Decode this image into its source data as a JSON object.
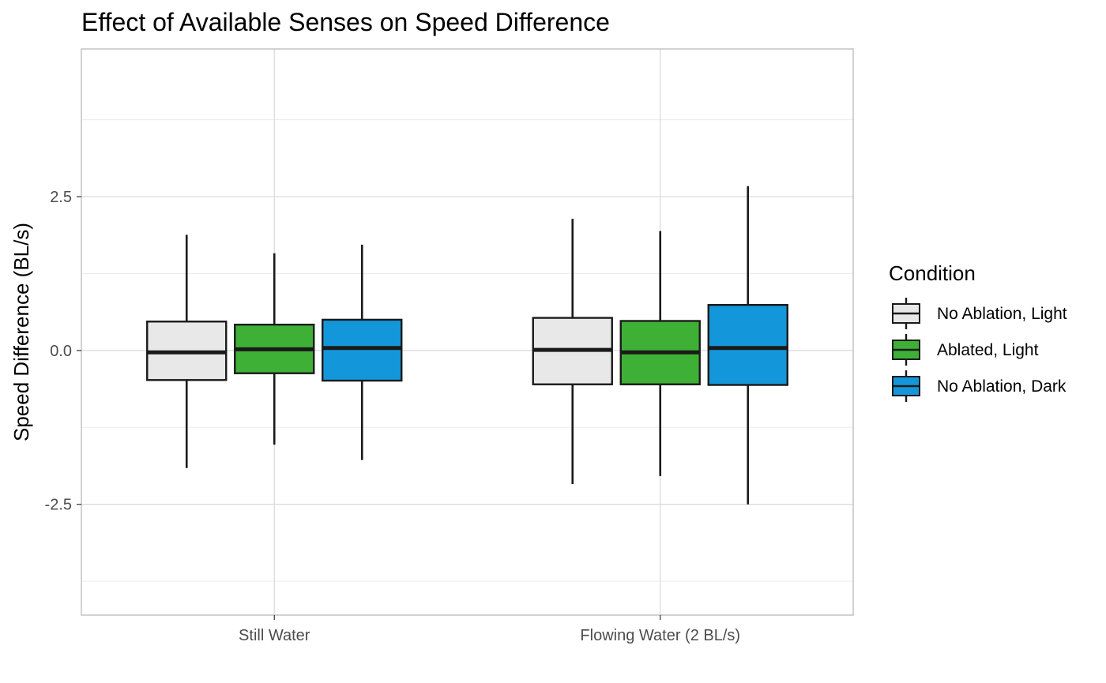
{
  "chart_data": {
    "type": "boxplot",
    "title": "Effect of Available Senses on Speed Difference",
    "ylabel": "Speed Difference (BL/s)",
    "xlabel": "",
    "categories": [
      "Still Water",
      "Flowing Water (2 BL/s)"
    ],
    "ylim": [
      -4.3,
      4.9
    ],
    "y_ticks": [
      -2.5,
      0.0,
      2.5
    ],
    "y_tick_labels": [
      "-2.5",
      "0.0",
      "2.5"
    ],
    "grid": true,
    "legend": {
      "title": "Condition",
      "position": "right"
    },
    "series": [
      {
        "name": "No Ablation, Light",
        "color": "#E8E8E8",
        "boxes": [
          {
            "min": -1.91,
            "q1": -0.48,
            "median": -0.03,
            "q3": 0.47,
            "max": 1.88
          },
          {
            "min": -2.17,
            "q1": -0.55,
            "median": 0.01,
            "q3": 0.53,
            "max": 2.14
          }
        ]
      },
      {
        "name": "Ablated, Light",
        "color": "#3DB035",
        "boxes": [
          {
            "min": -1.53,
            "q1": -0.37,
            "median": 0.02,
            "q3": 0.42,
            "max": 1.58
          },
          {
            "min": -2.04,
            "q1": -0.55,
            "median": -0.03,
            "q3": 0.48,
            "max": 1.94
          }
        ]
      },
      {
        "name": "No Ablation, Dark",
        "color": "#1497DA",
        "boxes": [
          {
            "min": -1.78,
            "q1": -0.49,
            "median": 0.04,
            "q3": 0.5,
            "max": 1.72
          },
          {
            "min": -2.5,
            "q1": -0.56,
            "median": 0.04,
            "q3": 0.74,
            "max": 2.67
          }
        ]
      }
    ]
  },
  "colors": {
    "panel_border": "#b3b3b3",
    "grid_major": "#d9d9d9",
    "grid_minor": "#ececec",
    "box_stroke": "#1a1a1a"
  }
}
